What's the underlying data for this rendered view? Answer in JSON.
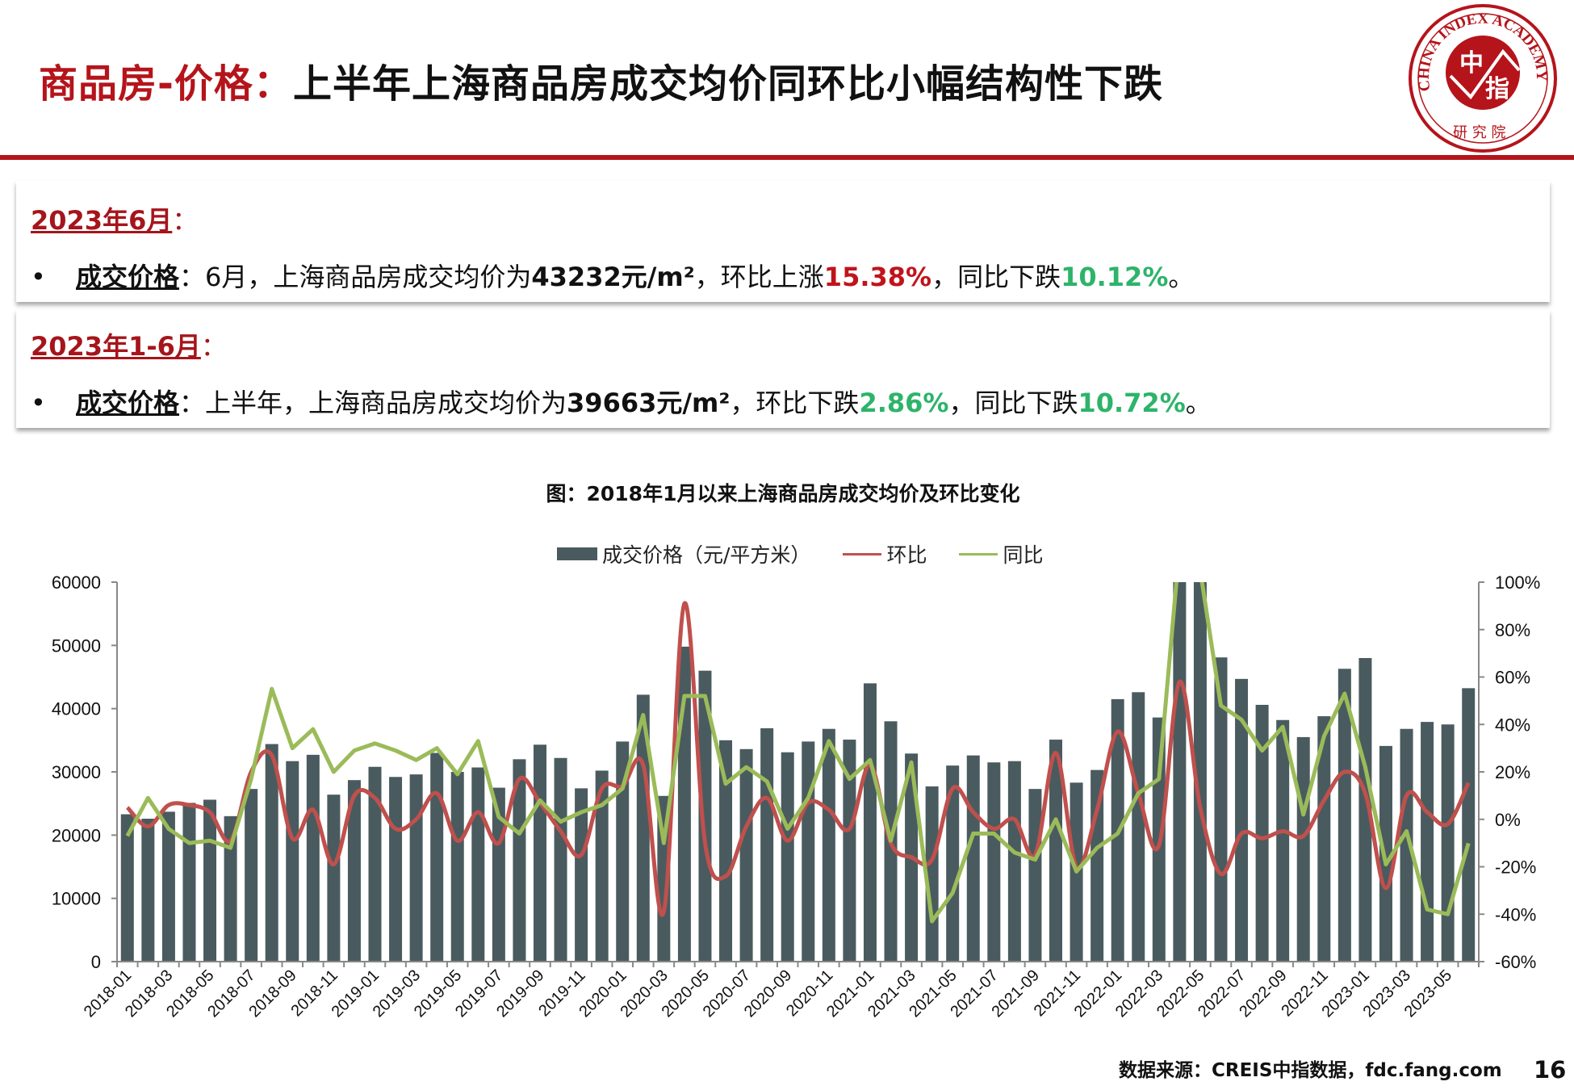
{
  "header": {
    "title_prefix": "商品房-价格：",
    "title_main": "上半年上海商品房成交均价同环比小幅结构性下跌",
    "logo": {
      "text_ring": "CHINA INDEX ACADEMY",
      "center": "中指",
      "bottom": "研究院"
    }
  },
  "colors": {
    "brand_red": "#B5141B",
    "up_red": "#C0141C",
    "down_green": "#2DB46A",
    "bar": "#4A5B5F",
    "mom_line": "#C0504D",
    "yoy_line": "#9BBB59"
  },
  "sections": [
    {
      "heading": "2023年6月",
      "colon": "：",
      "bullet": "•",
      "label": "成交价格",
      "t1": "：6月，上海商品房成交均价为",
      "price": "43232元/m²",
      "t2": "，环比上涨",
      "mom": "15.38%",
      "t3": "，同比下跌",
      "yoy": "10.12%",
      "t4": "。"
    },
    {
      "heading": "2023年1-6月",
      "colon": "：",
      "bullet": "•",
      "label": "成交价格",
      "t1": "：上半年，上海商品房成交均价为",
      "price": "39663元/m²",
      "t2": "，环比下跌",
      "mom": "2.86%",
      "t3": "，同比下跌",
      "yoy": "10.72%",
      "t4": "。"
    }
  ],
  "chart_data": {
    "type": "bar+line",
    "title": "图：2018年1月以来上海商品房成交均价及环比变化",
    "legend_position": "top",
    "grid": false,
    "ylim_left": [
      0,
      60000
    ],
    "yticks_left": [
      "0",
      "10000",
      "20000",
      "30000",
      "40000",
      "50000",
      "60000"
    ],
    "ylim_right": [
      -60,
      100
    ],
    "yticks_right": [
      "-60%",
      "-40%",
      "-20%",
      "0%",
      "20%",
      "40%",
      "60%",
      "80%",
      "100%"
    ],
    "categories": [
      "2018-01",
      "2018-02",
      "2018-03",
      "2018-04",
      "2018-05",
      "2018-06",
      "2018-07",
      "2018-08",
      "2018-09",
      "2018-10",
      "2018-11",
      "2018-12",
      "2019-01",
      "2019-02",
      "2019-03",
      "2019-04",
      "2019-05",
      "2019-06",
      "2019-07",
      "2019-08",
      "2019-09",
      "2019-10",
      "2019-11",
      "2019-12",
      "2020-01",
      "2020-02",
      "2020-03",
      "2020-04",
      "2020-05",
      "2020-06",
      "2020-07",
      "2020-08",
      "2020-09",
      "2020-10",
      "2020-11",
      "2020-12",
      "2021-01",
      "2021-02",
      "2021-03",
      "2021-04",
      "2021-05",
      "2021-06",
      "2021-07",
      "2021-08",
      "2021-09",
      "2021-10",
      "2021-11",
      "2021-12",
      "2022-01",
      "2022-02",
      "2022-03",
      "2022-04",
      "2022-05",
      "2022-06",
      "2022-07",
      "2022-08",
      "2022-09",
      "2022-10",
      "2022-11",
      "2022-12",
      "2023-01",
      "2023-02",
      "2023-03",
      "2023-04",
      "2023-05",
      "2023-06"
    ],
    "series": [
      {
        "name": "成交价格（元/平方米）",
        "type": "bar",
        "axis": "left",
        "values": [
          23300,
          22600,
          23700,
          25100,
          25600,
          23000,
          27300,
          34400,
          31700,
          32700,
          26400,
          28700,
          30800,
          29200,
          29600,
          33000,
          30000,
          30700,
          27500,
          32000,
          34300,
          32200,
          27400,
          30200,
          34800,
          42200,
          26200,
          49800,
          46000,
          35000,
          33600,
          36900,
          33100,
          34800,
          36800,
          35100,
          44000,
          38000,
          32900,
          27700,
          31000,
          32600,
          31500,
          31700,
          27300,
          35100,
          28300,
          30300,
          41500,
          42600,
          38600,
          62000,
          61000,
          48100,
          44700,
          40600,
          38200,
          35500,
          38800,
          46300,
          48000,
          34100,
          36800,
          37900,
          37500,
          43232
        ]
      },
      {
        "name": "环比",
        "type": "line",
        "axis": "right",
        "unit": "%",
        "values": [
          5,
          -3,
          6,
          6,
          3,
          -9,
          20,
          27,
          -8,
          4,
          -19,
          10,
          9,
          -4,
          0,
          11,
          -9,
          3,
          -10,
          17,
          7,
          -5,
          -15,
          13,
          14,
          23,
          -39,
          91,
          -10,
          -24,
          -3,
          9,
          -9,
          7,
          4,
          -4,
          23,
          -10,
          -16,
          -17,
          13,
          3,
          -4,
          0,
          -15,
          28,
          -20,
          4,
          37,
          11,
          -11,
          58,
          5,
          -23,
          -6,
          -8,
          -5,
          -7,
          8,
          20,
          11,
          -29,
          10,
          3,
          -2,
          15.38
        ]
      },
      {
        "name": "同比",
        "type": "line",
        "axis": "right",
        "unit": "%",
        "values": [
          -7,
          9,
          -4,
          -10,
          -9,
          -12,
          17,
          55,
          30,
          38,
          20,
          29,
          32,
          29,
          25,
          30,
          19,
          33,
          1,
          -6,
          8,
          -1,
          3,
          6,
          13,
          44,
          -10,
          52,
          52,
          15,
          22,
          16,
          -4,
          9,
          33,
          17,
          25,
          -9,
          24,
          -43,
          -31,
          -6,
          -6,
          -14,
          -17,
          0,
          -22,
          -12,
          -6,
          11,
          17,
          115,
          105,
          48,
          42,
          29,
          39,
          2,
          35,
          53,
          22,
          -19,
          -5,
          -38,
          -40,
          -10.12
        ]
      }
    ]
  },
  "footer": {
    "source": "数据来源：CREIS中指数据，fdc.fang.com",
    "page": "16"
  }
}
